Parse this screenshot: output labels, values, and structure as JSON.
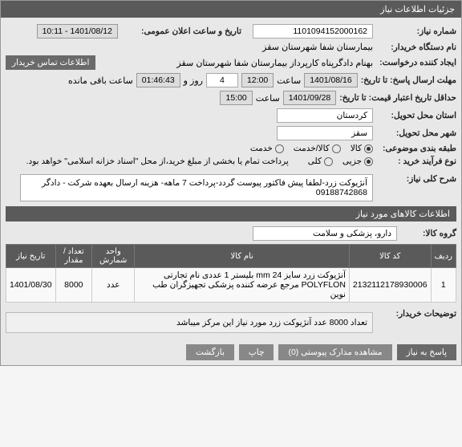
{
  "header": {
    "title": "جزئیات اطلاعات نیاز"
  },
  "fields": {
    "need_no_label": "شماره نیاز:",
    "need_no": "1101094152000162",
    "public_datetime_label": "تاریخ و ساعت اعلان عمومی:",
    "public_datetime": "1401/08/12 - 10:11",
    "buyer_org_label": "نام دستگاه خریدار:",
    "buyer_org": "بیمارستان شفا شهرستان سقز",
    "requester_label": "ایجاد کننده درخواست:",
    "requester": "بهنام دادگرپناه کارپرداز بیمارستان شفا شهرستان سقز",
    "contact_btn": "اطلاعات تماس خریدار",
    "reply_deadline_label": "مهلت ارسال پاسخ: تا تاریخ:",
    "reply_date": "1401/08/16",
    "time_lbl": "ساعت",
    "reply_time": "12:00",
    "day_lbl": "روز و",
    "days_remain": "4",
    "remain_time": "01:46:43",
    "remain_lbl": "ساعت باقی مانده",
    "validity_label": "حداقل تاریخ اعتبار قیمت: تا تاریخ:",
    "validity_date": "1401/09/28",
    "validity_time": "15:00",
    "province_label": "استان محل تحویل:",
    "province": "کردستان",
    "city_label": "شهر محل تحویل:",
    "city": "سقز",
    "category_label": "طبقه بندی موضوعی:",
    "cat_kala": "کالا",
    "cat_khadamat": "کالا/خدمت",
    "cat_service": "خدمت",
    "purchase_type_label": "نوع فرآیند خرید :",
    "pt_partial": "جزیی",
    "pt_full": "کلی",
    "payment_note": "پرداخت تمام یا بخشی از مبلغ خرید،از محل \"اسناد خزانه اسلامی\" خواهد بود.",
    "desc_label": "شرح کلی نیاز:",
    "desc": "آنژیوکت زرد-لطفا پیش فاکتور پیوست گردد-پرداخت 7 ماهه- هزینه ارسال بعهده شرکت - دادگر 09188742868",
    "items_header": "اطلاعات کالاهای مورد نیاز",
    "group_label": "گروه کالا:",
    "group_value": "دارو، پزشکی و سلامت",
    "buyer_note_label": "توضیحات خریدار:",
    "buyer_note": "تعداد 8000 عدد آنژیوکت زرد مورد نیاز این مرکز میباشد"
  },
  "table": {
    "cols": [
      "ردیف",
      "کد کالا",
      "نام کالا",
      "واحد شمارش",
      "تعداد / مقدار",
      "تاریخ نیاز"
    ],
    "rows": [
      [
        "1",
        "2132112178930006",
        "آنژیوکت زرد سایز 24 mm بلیستر 1 عددی نام تجارتی POLYFLON مرجع عرضه کننده پزشکی تجهیزگران طب نوین",
        "عدد",
        "8000",
        "1401/08/30"
      ]
    ]
  },
  "footer": {
    "reply_btn": "پاسخ به نیاز",
    "attach_btn": "مشاهده مدارک پیوستی (0)",
    "print_btn": "چاپ",
    "back_btn": "بازگشت"
  }
}
